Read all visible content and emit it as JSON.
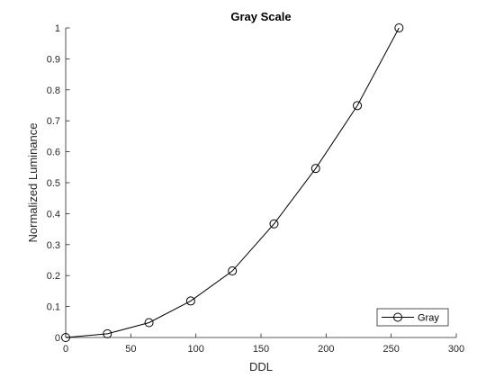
{
  "chart_data": {
    "type": "line",
    "title": "Gray Scale",
    "xlabel": "DDL",
    "ylabel": "Normalized Luminance",
    "xlim": [
      0,
      300
    ],
    "ylim": [
      0,
      1
    ],
    "xticks": [
      0,
      50,
      100,
      150,
      200,
      250,
      300
    ],
    "yticks": [
      0,
      0.1,
      0.2,
      0.3,
      0.4,
      0.5,
      0.6,
      0.7,
      0.8,
      0.9,
      1
    ],
    "xtick_labels": [
      "0",
      "50",
      "100",
      "150",
      "200",
      "250",
      "300"
    ],
    "ytick_labels": [
      "0",
      "0.1",
      "0.2",
      "0.3",
      "0.4",
      "0.5",
      "0.6",
      "0.7",
      "0.8",
      "0.9",
      "1"
    ],
    "grid": false,
    "legend_position": "bottom-right",
    "series": [
      {
        "name": "Gray",
        "color": "#000000",
        "marker": "circle",
        "x": [
          0,
          32,
          64,
          96,
          128,
          160,
          192,
          224,
          256
        ],
        "y": [
          0,
          0.012,
          0.048,
          0.118,
          0.215,
          0.367,
          0.546,
          0.749,
          1.0
        ]
      }
    ]
  }
}
